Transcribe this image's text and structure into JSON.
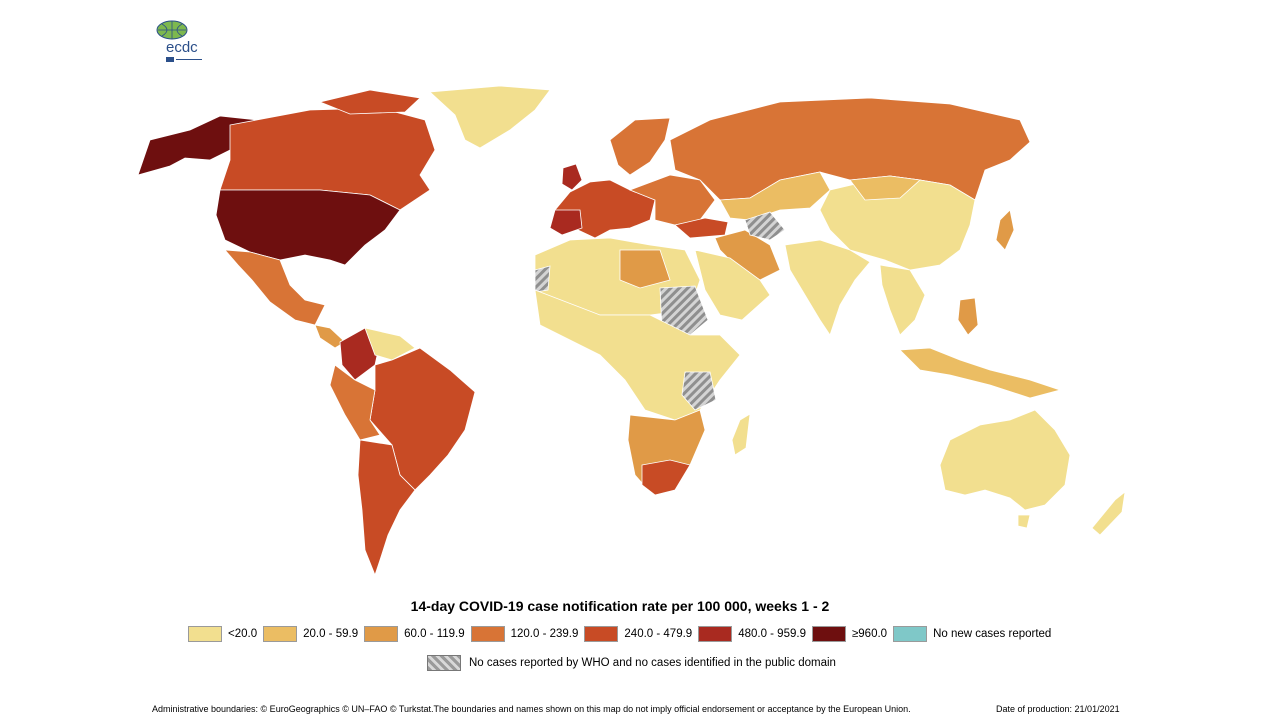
{
  "logo": {
    "text": "ecdc"
  },
  "map": {
    "title": "14-day COVID-19 case notification rate per 100 000, weeks  1 - 2",
    "legend": [
      {
        "label": "<20.0",
        "color": "#f2df8f"
      },
      {
        "label": "20.0 - 59.9",
        "color": "#ebbd63"
      },
      {
        "label": "60.0 - 119.9",
        "color": "#e09a47"
      },
      {
        "label": "120.0 - 239.9",
        "color": "#d87436"
      },
      {
        "label": "240.0 - 479.9",
        "color": "#c84b25"
      },
      {
        "label": "480.0 - 959.9",
        "color": "#a92a20"
      },
      {
        "label": "≥960.0",
        "color": "#6e0f0f"
      },
      {
        "label": "No new cases reported",
        "color": "#7fc8c8"
      }
    ],
    "no_data_label": "No cases reported by WHO and no cases identified in the public domain"
  },
  "footer": {
    "attribution": "Administrative boundaries: © EuroGeographics © UN–FAO © Turkstat.The boundaries and names shown on this map do not imply official endorsement or acceptance by the European Union.",
    "production_date": "Date of production: 21/01/2021"
  }
}
